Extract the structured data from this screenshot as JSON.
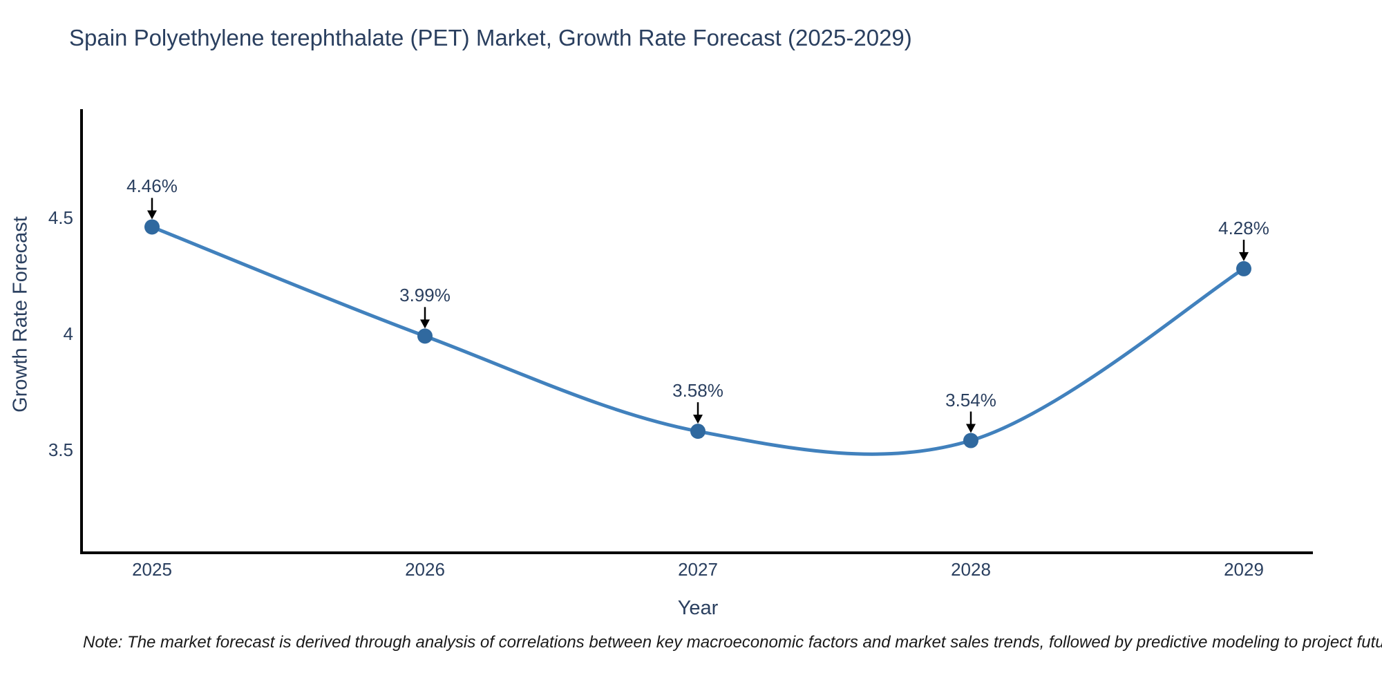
{
  "title": "Spain Polyethylene terephthalate (PET) Market, Growth Rate Forecast (2025-2029)",
  "note": "Note: The market forecast is derived through analysis of correlations between key macroeconomic factors and market sales trends, followed by predictive modeling to project future sales",
  "chart_data": {
    "type": "line",
    "line_shape": "spline",
    "x": [
      2025,
      2026,
      2027,
      2028,
      2029
    ],
    "series": [
      {
        "name": "Growth Rate Forecast",
        "values": [
          4.46,
          3.99,
          3.58,
          3.54,
          4.28
        ]
      }
    ],
    "point_labels": [
      "4.46%",
      "3.99%",
      "3.58%",
      "3.54%",
      "4.28%"
    ],
    "title": "Spain Polyethylene terephthalate (PET) Market, Growth Rate Forecast (2025-2029)",
    "xlabel": "Year",
    "ylabel": "Growth Rate Forecast",
    "x_tick_labels": [
      "2025",
      "2026",
      "2027",
      "2028",
      "2029"
    ],
    "y_ticks": [
      {
        "label": "4.5",
        "value": 4.5
      },
      {
        "label": "4",
        "value": 4.0
      },
      {
        "label": "3.5",
        "value": 3.5
      }
    ],
    "ylim": [
      3.06,
      4.97
    ],
    "grid": false,
    "legend": "none",
    "annotations_have_arrows": true,
    "colors": {
      "line": "#4181bd",
      "marker": "#30699f",
      "axis": "#000000",
      "tick_text": "#2a3f5f",
      "title_text": "#2a3f5f",
      "annotation_arrow": "#000000",
      "note_text": "#1a1a1a",
      "background": "#ffffff"
    }
  }
}
